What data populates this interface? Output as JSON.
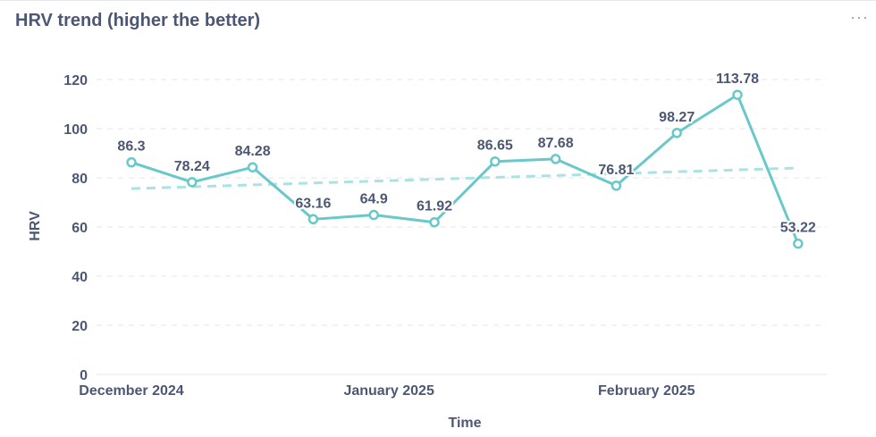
{
  "card": {
    "title": "HRV trend (higher the better)",
    "menu_icon": "more-horizontal-icon"
  },
  "colors": {
    "series": "#69c8c9",
    "trend": "#a9e3e3",
    "grid": "#e4e6ea",
    "text": "#4c5773"
  },
  "chart_data": {
    "type": "line",
    "title": "HRV trend (higher the better)",
    "xlabel": "Time",
    "ylabel": "HRV",
    "ylim": [
      0,
      120
    ],
    "yticks": [
      0,
      20,
      40,
      60,
      80,
      100,
      120
    ],
    "grid": "horizontal dashed",
    "x_tick_labels": [
      "December 2024",
      "January 2025",
      "February 2025"
    ],
    "x_tick_indices": [
      0,
      4.25,
      8.5
    ],
    "series": [
      {
        "values": [
          86.3,
          78.24,
          84.28,
          63.16,
          64.9,
          61.92,
          86.65,
          87.68,
          76.81,
          98.27,
          113.78,
          53.22
        ],
        "labels": [
          "86.3",
          "78.24",
          "84.28",
          "63.16",
          "64.9",
          "61.92",
          "86.65",
          "87.68",
          "76.81",
          "98.27",
          "113.78",
          "53.22"
        ]
      }
    ],
    "trendline": {
      "start": 75.6,
      "end": 84.0
    }
  }
}
